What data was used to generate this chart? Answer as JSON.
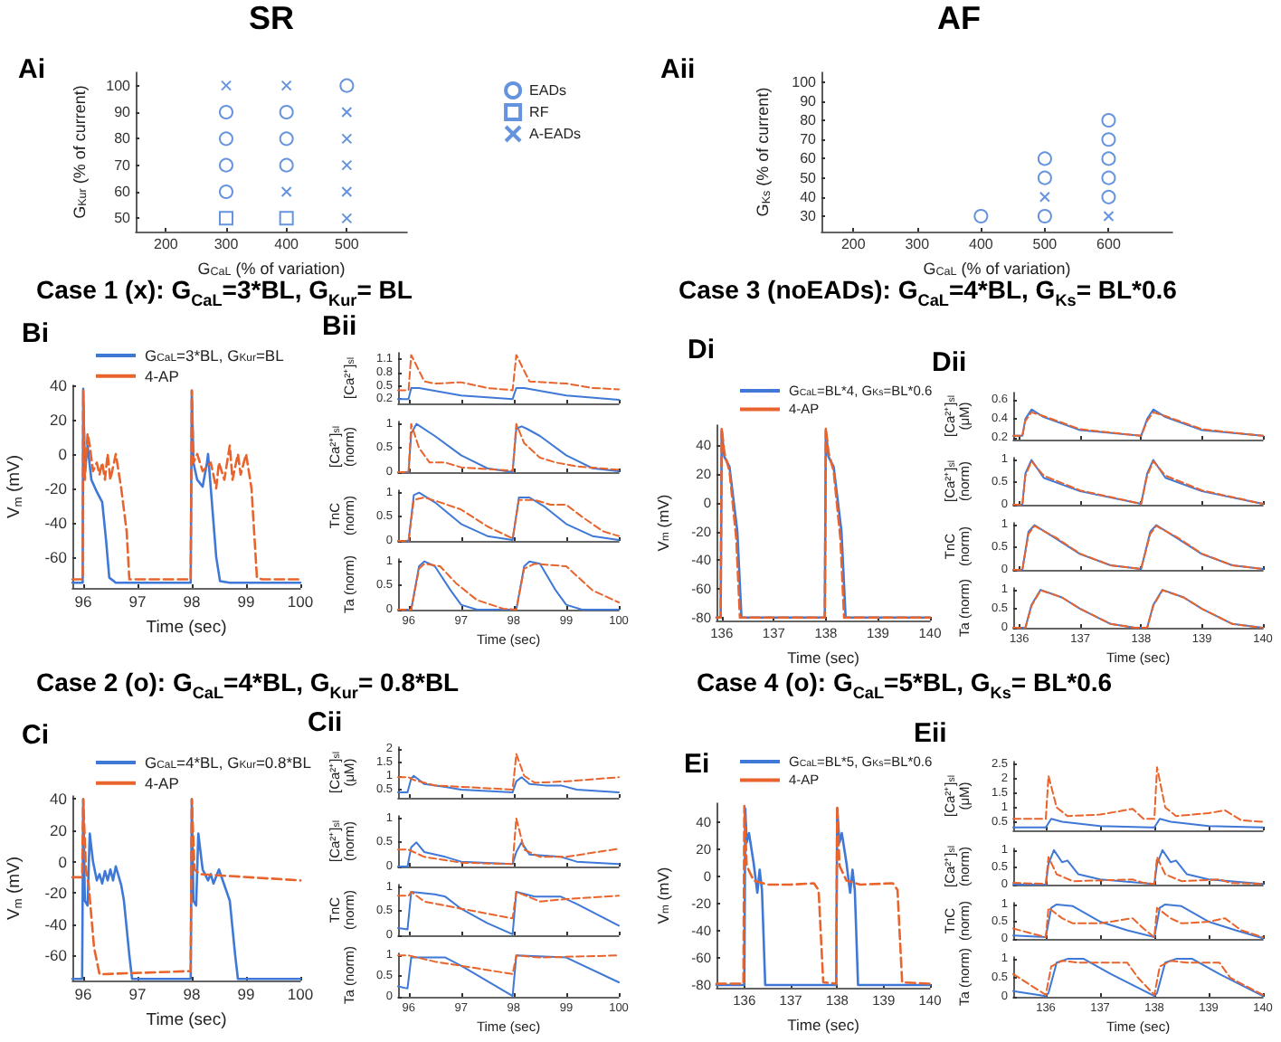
{
  "chart_data": [
    {
      "type": "scatter",
      "title": "Ai",
      "subtitle": "SR",
      "xlabel": "G$_{CaL}$ (% of variation)",
      "ylabel": "G$_{Kur}$ (% of current)",
      "xlim": [
        150,
        600
      ],
      "xticks": [
        200,
        300,
        400,
        500
      ],
      "ylim": [
        45,
        105
      ],
      "yticks": [
        50,
        60,
        70,
        80,
        90,
        100
      ],
      "legend": "top right",
      "series": [
        {
          "name": "EADs",
          "color": "#3f78d6",
          "marker": "circle",
          "x": [
            300,
            300,
            300,
            300,
            400,
            400,
            400,
            500
          ],
          "values": [
            90,
            80,
            70,
            60,
            90,
            80,
            70,
            100
          ]
        },
        {
          "name": "RF",
          "color": "#3f78d6",
          "marker": "square",
          "x": [
            300,
            400
          ],
          "values": [
            50,
            50
          ]
        },
        {
          "name": "A-EADs",
          "color": "#3f78d6",
          "marker": "cross",
          "x": [
            300,
            400,
            400,
            500,
            500,
            500,
            500,
            500
          ],
          "values": [
            100,
            100,
            60,
            90,
            80,
            70,
            60,
            50
          ]
        }
      ]
    },
    {
      "type": "scatter",
      "title": "Aii",
      "subtitle": "AF",
      "xlabel": "G$_{CaL}$ (% of variation)",
      "ylabel": "G$_{Ks}$ (% of current)",
      "xlim": [
        150,
        700
      ],
      "xticks": [
        200,
        300,
        400,
        500,
        600
      ],
      "ylim": [
        22,
        105
      ],
      "yticks": [
        30,
        40,
        50,
        60,
        70,
        80,
        90,
        100
      ],
      "series": [
        {
          "color": "#3f78d6",
          "marker": "circle",
          "x": [
            400,
            500,
            500,
            500,
            600,
            600,
            600,
            600,
            600
          ],
          "values": [
            30,
            30,
            50,
            60,
            40,
            50,
            60,
            70,
            80
          ]
        },
        {
          "color": "#3f78d6",
          "marker": "cross",
          "x": [
            500,
            600
          ],
          "values": [
            40,
            30
          ]
        }
      ]
    },
    {
      "type": "line",
      "title": "Bi",
      "subtitle": "Case 1 (x): G$_{CaL}$=3*BL, G$_{Kur}$= BL",
      "xlabel": "Time (sec)",
      "ylabel": "V$_{m}$ (mV)",
      "xlim": [
        95.8,
        100
      ],
      "xticks": [
        96,
        97,
        98,
        99,
        100
      ],
      "ylim": [
        -78,
        40
      ],
      "yticks": [
        -60,
        -40,
        -20,
        0,
        20,
        40
      ],
      "legend": "top",
      "series": [
        {
          "name": "G$_{CaL}$=3*BL, G$_{Kur}$=BL",
          "color": "#3f78d6",
          "line_style": "solid",
          "x": [
            95.8,
            95.99,
            96.0,
            96.03,
            96.08,
            96.15,
            96.25,
            96.35,
            96.42,
            96.48,
            96.6,
            97.98,
            98.0,
            98.03,
            98.1,
            98.2,
            98.28,
            98.3,
            98.35,
            98.45,
            98.52,
            98.7,
            100
          ],
          "values": [
            -75,
            -75,
            38,
            -10,
            5,
            -15,
            -22,
            -28,
            -50,
            -72,
            -75,
            -75,
            37,
            -5,
            -15,
            -19,
            -5,
            0,
            -20,
            -60,
            -74,
            -75,
            -75
          ]
        },
        {
          "name": "4-AP",
          "color": "#e8642c",
          "line_style": "dashed",
          "x": [
            95.8,
            95.99,
            96.0,
            96.03,
            96.08,
            96.12,
            96.18,
            96.25,
            96.3,
            96.35,
            96.4,
            96.45,
            96.5,
            96.6,
            96.7,
            96.8,
            96.85,
            97.98,
            98.0,
            98.03,
            98.1,
            98.2,
            98.35,
            98.45,
            98.5,
            98.6,
            98.7,
            98.75,
            98.85,
            98.9,
            99.0,
            99.1,
            99.2,
            99.3,
            100
          ],
          "values": [
            -73,
            -73,
            37,
            -15,
            12,
            5,
            -10,
            -5,
            -12,
            -5,
            -15,
            0,
            -15,
            0,
            -20,
            -45,
            -73,
            -73,
            37,
            -5,
            0,
            -10,
            -5,
            -20,
            -5,
            -15,
            5,
            -15,
            0,
            -12,
            0,
            -20,
            -72,
            -73,
            -73
          ]
        }
      ]
    },
    {
      "type": "line",
      "title": "Bii",
      "ylabel": "[Ca²⁺]$_{sl}$",
      "xlim": [
        95.8,
        100
      ],
      "xticks": [
        96,
        97,
        98,
        99,
        100
      ],
      "ylim": [
        0.1,
        1.25
      ],
      "yticks": [
        0.2,
        0.5,
        0.8,
        1.1
      ],
      "tick_labels": "y",
      "series": [
        {
          "color": "#3f78d6",
          "line_style": "solid",
          "x": [
            95.8,
            96.0,
            96.05,
            96.2,
            97,
            97.98,
            98.05,
            98.2,
            99,
            100
          ],
          "values": [
            0.2,
            0.2,
            0.45,
            0.45,
            0.28,
            0.2,
            0.45,
            0.45,
            0.28,
            0.18
          ]
        },
        {
          "color": "#e8642c",
          "line_style": "dashed",
          "x": [
            95.8,
            96.0,
            96.05,
            96.3,
            96.5,
            97,
            97.5,
            97.98,
            98.05,
            98.3,
            99,
            99.5,
            100
          ],
          "values": [
            0.4,
            0.4,
            1.2,
            0.6,
            0.55,
            0.58,
            0.45,
            0.4,
            1.2,
            0.6,
            0.55,
            0.45,
            0.42
          ]
        }
      ]
    },
    {
      "type": "line",
      "ylabel": "[Ca²⁺]$_{sl}$ (norm)",
      "xlim": [
        95.8,
        100
      ],
      "xticks": [
        96,
        97,
        98,
        99,
        100
      ],
      "ylim": [
        0,
        1.05
      ],
      "yticks": [
        0,
        0.5,
        1
      ],
      "tick_labels": "y",
      "series": [
        {
          "color": "#3f78d6",
          "line_style": "solid",
          "x": [
            95.8,
            96.0,
            96.05,
            96.15,
            96.5,
            97,
            97.5,
            97.98,
            98.05,
            98.15,
            98.25,
            98.5,
            99,
            99.5,
            100
          ],
          "values": [
            0,
            0,
            0.8,
            1,
            0.75,
            0.35,
            0.08,
            0,
            0.9,
            0.95,
            0.9,
            0.75,
            0.35,
            0.08,
            0.02
          ]
        },
        {
          "color": "#e8642c",
          "line_style": "dashed",
          "x": [
            95.8,
            96.0,
            96.05,
            96.2,
            96.4,
            96.7,
            97,
            97.98,
            98.05,
            98.2,
            98.5,
            98.8,
            99.2,
            100
          ],
          "values": [
            0,
            0,
            1,
            0.5,
            0.2,
            0.2,
            0.1,
            0.03,
            1,
            0.6,
            0.3,
            0.2,
            0.12,
            0.05
          ]
        }
      ]
    },
    {
      "type": "line",
      "ylabel": "TnC (norm)",
      "xlim": [
        95.8,
        100
      ],
      "xticks": [
        96,
        97,
        98,
        99,
        100
      ],
      "ylim": [
        0,
        1.05
      ],
      "yticks": [
        0,
        0.5,
        1
      ],
      "tick_labels": "y",
      "series": [
        {
          "color": "#3f78d6",
          "line_style": "solid",
          "x": [
            95.8,
            96.0,
            96.1,
            96.2,
            96.5,
            97,
            97.5,
            97.98,
            98.1,
            98.3,
            98.6,
            99,
            99.5,
            100
          ],
          "values": [
            0,
            0,
            0.95,
            1,
            0.8,
            0.35,
            0.1,
            0.02,
            0.9,
            0.9,
            0.7,
            0.35,
            0.1,
            0.02
          ]
        },
        {
          "color": "#e8642c",
          "line_style": "dashed",
          "x": [
            95.8,
            96.0,
            96.1,
            96.3,
            96.6,
            97,
            97.5,
            97.98,
            98.1,
            98.4,
            98.7,
            99,
            99.3,
            99.7,
            100
          ],
          "values": [
            0,
            0,
            0.85,
            0.9,
            0.8,
            0.65,
            0.3,
            0.05,
            0.85,
            0.85,
            0.75,
            0.75,
            0.5,
            0.2,
            0.1
          ]
        }
      ]
    },
    {
      "type": "line",
      "xlabel": "Time (sec)",
      "ylabel": "Ta (norm)",
      "xlim": [
        95.8,
        100
      ],
      "xticks": [
        96,
        97,
        98,
        99,
        100
      ],
      "ylim": [
        0,
        1.05
      ],
      "yticks": [
        0,
        0.5,
        1
      ],
      "series": [
        {
          "color": "#3f78d6",
          "line_style": "solid",
          "x": [
            95.8,
            96.05,
            96.2,
            96.3,
            96.5,
            96.8,
            97,
            97.3,
            98.05,
            98.2,
            98.3,
            98.5,
            98.8,
            99,
            99.3,
            100
          ],
          "values": [
            0,
            0,
            0.9,
            1,
            0.9,
            0.4,
            0.1,
            0,
            0,
            0.9,
            1,
            0.95,
            0.4,
            0.1,
            0,
            0
          ]
        },
        {
          "color": "#e8642c",
          "line_style": "dashed",
          "x": [
            95.8,
            96.05,
            96.2,
            96.3,
            96.6,
            96.9,
            97.3,
            97.8,
            98.05,
            98.2,
            98.4,
            99,
            99.5,
            100
          ],
          "values": [
            0,
            0,
            0.85,
            0.95,
            0.9,
            0.55,
            0.2,
            0.02,
            0,
            0.85,
            0.95,
            0.9,
            0.4,
            0.15
          ]
        }
      ]
    },
    {
      "type": "line",
      "title": "Di",
      "subtitle": "Case 3 (noEADs): G$_{CaL}$=4*BL, G$_{Ks}$= BL*0.6",
      "xlabel": "Time (sec)",
      "ylabel": "V$_{m}$ (mV)",
      "xlim": [
        135.9,
        140
      ],
      "xticks": [
        136,
        137,
        138,
        139,
        140
      ],
      "ylim": [
        -82,
        54
      ],
      "yticks": [
        -80,
        -60,
        -40,
        -20,
        0,
        20,
        40
      ],
      "legend": "top",
      "series": [
        {
          "name": "G$_{CaL}$=BL*4, G$_{Ks}$=BL*0.6",
          "color": "#3f78d6",
          "line_style": "solid",
          "x": [
            135.9,
            135.98,
            136.0,
            136.05,
            136.15,
            136.3,
            136.38,
            137.98,
            138.0,
            138.05,
            138.15,
            138.3,
            138.38,
            140
          ],
          "values": [
            -80,
            -80,
            50,
            32,
            25,
            -20,
            -80,
            -80,
            50,
            32,
            25,
            -20,
            -80,
            -80
          ]
        },
        {
          "name": "4-AP",
          "color": "#e8642c",
          "line_style": "dashed",
          "x": [
            135.9,
            135.98,
            136.0,
            136.05,
            136.15,
            136.28,
            136.35,
            137.98,
            138.0,
            138.05,
            138.15,
            138.28,
            138.35,
            140
          ],
          "values": [
            -80,
            -80,
            52,
            35,
            22,
            -25,
            -80,
            -80,
            52,
            35,
            22,
            -25,
            -80,
            -80
          ]
        }
      ]
    },
    {
      "type": "line",
      "title": "Dii",
      "ylabel": "[Ca²⁺]$_{sl}$ (μM)",
      "xlim": [
        135.9,
        140
      ],
      "xticks": [
        136,
        137,
        138,
        139,
        140
      ],
      "ylim": [
        0.18,
        0.68
      ],
      "yticks": [
        0.2,
        0.4,
        0.6
      ],
      "tick_labels": "y",
      "series": [
        {
          "color": "#3f78d6",
          "line_style": "solid",
          "x": [
            135.9,
            136.05,
            136.1,
            136.2,
            136.4,
            137,
            138,
            138.1,
            138.2,
            138.4,
            139,
            140
          ],
          "values": [
            0.22,
            0.22,
            0.4,
            0.5,
            0.42,
            0.28,
            0.22,
            0.4,
            0.5,
            0.42,
            0.28,
            0.22
          ]
        },
        {
          "color": "#e8642c",
          "line_style": "dashed",
          "x": [
            135.9,
            136.05,
            136.1,
            136.2,
            136.4,
            137,
            138,
            138.1,
            138.2,
            138.4,
            139,
            140
          ],
          "values": [
            0.22,
            0.22,
            0.38,
            0.47,
            0.43,
            0.29,
            0.22,
            0.38,
            0.47,
            0.43,
            0.29,
            0.22
          ]
        }
      ]
    },
    {
      "type": "line",
      "ylabel": "[Ca²⁺]$_{sl}$ (norm)",
      "xlim": [
        135.9,
        140
      ],
      "xticks": [
        136,
        137,
        138,
        139,
        140
      ],
      "ylim": [
        0,
        1.05
      ],
      "yticks": [
        0,
        0.5,
        1
      ],
      "tick_labels": "y",
      "series": [
        {
          "color": "#3f78d6",
          "line_style": "solid",
          "x": [
            135.9,
            136.05,
            136.1,
            136.2,
            136.4,
            137,
            138,
            138.1,
            138.2,
            138.4,
            139,
            140
          ],
          "values": [
            0,
            0,
            0.7,
            1,
            0.6,
            0.3,
            0.02,
            0.7,
            1,
            0.6,
            0.3,
            0.02
          ]
        },
        {
          "color": "#e8642c",
          "line_style": "dashed",
          "x": [
            135.9,
            136.05,
            136.1,
            136.2,
            136.4,
            137,
            138,
            138.1,
            138.2,
            138.4,
            139,
            140
          ],
          "values": [
            0,
            0,
            0.65,
            0.97,
            0.65,
            0.32,
            0.02,
            0.65,
            0.97,
            0.65,
            0.32,
            0.02
          ]
        }
      ]
    },
    {
      "type": "line",
      "ylabel": "TnC (norm)",
      "xlim": [
        135.9,
        140
      ],
      "xticks": [
        136,
        137,
        138,
        139,
        140
      ],
      "ylim": [
        0,
        1.05
      ],
      "yticks": [
        0,
        0.5,
        1
      ],
      "tick_labels": "y",
      "series": [
        {
          "color": "#3f78d6",
          "line_style": "solid",
          "x": [
            135.9,
            136.05,
            136.15,
            136.25,
            136.6,
            137,
            137.5,
            138,
            138.15,
            138.25,
            138.6,
            139,
            139.5,
            140
          ],
          "values": [
            0,
            0,
            0.85,
            1,
            0.7,
            0.35,
            0.1,
            0.02,
            0.85,
            1,
            0.7,
            0.35,
            0.1,
            0.02
          ]
        },
        {
          "color": "#e8642c",
          "line_style": "dashed",
          "x": [
            135.9,
            136.05,
            136.15,
            136.25,
            136.6,
            137,
            137.5,
            138,
            138.15,
            138.25,
            138.6,
            139,
            139.5,
            140
          ],
          "values": [
            0,
            0,
            0.8,
            0.98,
            0.72,
            0.36,
            0.1,
            0.02,
            0.8,
            0.98,
            0.72,
            0.36,
            0.1,
            0.02
          ]
        }
      ]
    },
    {
      "type": "line",
      "xlabel": "Time (sec)",
      "ylabel": "Ta (norm)",
      "xlim": [
        135.9,
        140
      ],
      "xticks": [
        136,
        137,
        138,
        139,
        140
      ],
      "ylim": [
        0,
        1.05
      ],
      "yticks": [
        0,
        0.5,
        1
      ],
      "series": [
        {
          "color": "#3f78d6",
          "line_style": "solid",
          "x": [
            135.9,
            136.1,
            136.2,
            136.35,
            136.7,
            137,
            137.5,
            137.9,
            138.1,
            138.2,
            138.35,
            138.7,
            139,
            139.5,
            140
          ],
          "values": [
            0,
            0,
            0.6,
            1,
            0.8,
            0.5,
            0.1,
            0,
            0,
            0.6,
            1,
            0.8,
            0.5,
            0.1,
            0
          ]
        },
        {
          "color": "#e8642c",
          "line_style": "dashed",
          "x": [
            135.9,
            136.1,
            136.2,
            136.35,
            136.7,
            137,
            137.5,
            137.9,
            138.1,
            138.2,
            138.35,
            138.7,
            139,
            139.5,
            140
          ],
          "values": [
            0,
            0,
            0.58,
            0.99,
            0.8,
            0.5,
            0.1,
            0,
            0,
            0.58,
            0.99,
            0.8,
            0.5,
            0.1,
            0
          ]
        }
      ]
    },
    {
      "type": "line",
      "title": "Ci",
      "subtitle": "Case 2 (o): G$_{CaL}$=4*BL, G$_{Kur}$= 0.8*BL",
      "xlabel": "Time (sec)",
      "ylabel": "V$_{m}$ (mV)",
      "xlim": [
        95.8,
        100
      ],
      "xticks": [
        96,
        97,
        98,
        99,
        100
      ],
      "ylim": [
        -76,
        42
      ],
      "yticks": [
        -60,
        -40,
        -20,
        0,
        20,
        40
      ],
      "legend": "top",
      "series": [
        {
          "name": "G$_{CaL}$=4*BL, G$_{Kur}$=0.8*BL",
          "color": "#3f78d6",
          "line_style": "solid",
          "x": [
            95.8,
            95.98,
            96.0,
            96.03,
            96.08,
            96.12,
            96.18,
            96.25,
            96.3,
            96.35,
            96.4,
            96.45,
            96.5,
            96.55,
            96.6,
            96.7,
            96.75,
            96.85,
            96.9,
            97.98,
            98.0,
            98.03,
            98.08,
            98.12,
            98.2,
            98.3,
            98.35,
            98.4,
            98.5,
            98.6,
            98.7,
            98.8,
            98.85,
            100
          ],
          "values": [
            -75,
            -75,
            40,
            -25,
            -28,
            18,
            0,
            -12,
            -8,
            -14,
            -6,
            -12,
            -5,
            -12,
            -3,
            -15,
            -25,
            -60,
            -75,
            -75,
            40,
            -25,
            -28,
            18,
            -5,
            -12,
            -8,
            -14,
            -5,
            -15,
            -25,
            -60,
            -75,
            -75
          ]
        },
        {
          "name": "4-AP",
          "color": "#e8642c",
          "line_style": "dashed",
          "x": [
            95.8,
            95.98,
            96.0,
            96.05,
            96.1,
            96.2,
            96.3,
            97.98,
            98.0,
            98.05,
            98.15,
            100
          ],
          "values": [
            -10,
            -10,
            40,
            -5,
            -15,
            -55,
            -72,
            -70,
            40,
            -5,
            -8,
            -12
          ]
        }
      ]
    },
    {
      "type": "line",
      "title": "Cii",
      "ylabel": "[Ca²⁺]$_{sl}$ (μM)",
      "xlim": [
        95.8,
        100
      ],
      "xticks": [
        96,
        97,
        98,
        99,
        100
      ],
      "ylim": [
        0.2,
        2.05
      ],
      "yticks": [
        0.5,
        1,
        1.5,
        2
      ],
      "tick_labels": "y",
      "series": [
        {
          "color": "#3f78d6",
          "line_style": "solid",
          "x": [
            95.8,
            95.98,
            96.05,
            96.1,
            96.3,
            96.7,
            97,
            97.98,
            98.05,
            98.15,
            98.3,
            98.6,
            98.9,
            99.2,
            100
          ],
          "values": [
            0.4,
            0.4,
            0.9,
            1.0,
            0.7,
            0.6,
            0.5,
            0.4,
            0.8,
            0.95,
            0.7,
            0.65,
            0.65,
            0.5,
            0.4
          ]
        },
        {
          "color": "#e8642c",
          "line_style": "dashed",
          "x": [
            95.8,
            96.0,
            96.1,
            96.5,
            97.98,
            98.05,
            98.2,
            98.4,
            99,
            100
          ],
          "values": [
            0.95,
            0.95,
            0.85,
            0.65,
            0.5,
            1.8,
            1.0,
            0.75,
            0.8,
            0.95
          ]
        }
      ]
    },
    {
      "type": "line",
      "ylabel": "[Ca²⁺]$_{sl}$ (norm)",
      "xlim": [
        95.8,
        100
      ],
      "xticks": [
        96,
        97,
        98,
        99,
        100
      ],
      "ylim": [
        0,
        1.05
      ],
      "yticks": [
        0,
        0.5,
        1
      ],
      "tick_labels": "y",
      "series": [
        {
          "color": "#3f78d6",
          "line_style": "solid",
          "x": [
            95.8,
            95.98,
            96.05,
            96.15,
            96.3,
            96.7,
            97,
            97.98,
            98.05,
            98.15,
            98.3,
            98.9,
            99.2,
            100
          ],
          "values": [
            0,
            0,
            0.4,
            0.5,
            0.3,
            0.2,
            0.1,
            0.05,
            0.3,
            0.5,
            0.25,
            0.2,
            0.1,
            0.05
          ]
        },
        {
          "color": "#e8642c",
          "line_style": "dashed",
          "x": [
            95.8,
            96.0,
            96.1,
            96.3,
            97,
            97.98,
            98.05,
            98.2,
            98.5,
            99,
            100
          ],
          "values": [
            0.35,
            0.35,
            0.3,
            0.2,
            0.08,
            0.05,
            1.0,
            0.35,
            0.2,
            0.2,
            0.37
          ]
        }
      ]
    },
    {
      "type": "line",
      "ylabel": "TnC (norm)",
      "xlim": [
        95.8,
        100
      ],
      "xticks": [
        96,
        97,
        98,
        99,
        100
      ],
      "ylim": [
        0,
        1.05
      ],
      "yticks": [
        0,
        0.5,
        1
      ],
      "tick_labels": "y",
      "series": [
        {
          "color": "#3f78d6",
          "line_style": "solid",
          "x": [
            95.8,
            95.98,
            96.05,
            96.5,
            96.7,
            97,
            97.5,
            97.98,
            98.05,
            98.4,
            98.9,
            99.2,
            100
          ],
          "values": [
            0.15,
            0.12,
            0.9,
            0.85,
            0.8,
            0.55,
            0.25,
            0.02,
            0.9,
            0.8,
            0.8,
            0.65,
            0.2
          ]
        },
        {
          "color": "#e8642c",
          "line_style": "dashed",
          "x": [
            95.8,
            96.0,
            96.05,
            96.3,
            97,
            97.98,
            98.05,
            98.5,
            99,
            100
          ],
          "values": [
            0.82,
            0.82,
            0.9,
            0.7,
            0.55,
            0.35,
            0.9,
            0.7,
            0.75,
            0.82
          ]
        }
      ]
    },
    {
      "type": "line",
      "xlabel": "Time (sec)",
      "ylabel": "Ta (norm)",
      "xlim": [
        95.8,
        100
      ],
      "xticks": [
        96,
        97,
        98,
        99,
        100
      ],
      "ylim": [
        0,
        1.05
      ],
      "yticks": [
        0,
        0.5,
        1
      ],
      "series": [
        {
          "color": "#3f78d6",
          "line_style": "solid",
          "x": [
            95.8,
            95.98,
            96.05,
            96.7,
            97,
            97.98,
            98.05,
            99,
            100
          ],
          "values": [
            0.25,
            0.2,
            0.95,
            0.95,
            0.75,
            0.02,
            1.0,
            0.95,
            0.35
          ]
        },
        {
          "color": "#e8642c",
          "line_style": "dashed",
          "x": [
            95.8,
            96.0,
            96.5,
            97.98,
            98.05,
            98.5,
            100
          ],
          "values": [
            1.0,
            1.0,
            0.85,
            0.55,
            1.0,
            0.95,
            1.0
          ]
        }
      ]
    },
    {
      "type": "line",
      "title": "Ei",
      "subtitle": "Case 4 (o): G$_{CaL}$=5*BL, G$_{Ks}$= BL*0.6",
      "xlabel": "Time (sec)",
      "ylabel": "V$_{m}$ (mV)",
      "xlim": [
        135.4,
        140
      ],
      "xticks": [
        136,
        137,
        138,
        139,
        140
      ],
      "ylim": [
        -82,
        54
      ],
      "yticks": [
        -80,
        -60,
        -40,
        -20,
        0,
        20,
        40
      ],
      "legend": "top",
      "series": [
        {
          "name": "G$_{CaL}$=BL*5, G$_{Ks}$=BL*0.6",
          "color": "#3f78d6",
          "line_style": "solid",
          "x": [
            135.4,
            136.0,
            136.02,
            136.05,
            136.1,
            136.2,
            136.28,
            136.33,
            136.38,
            136.45,
            137.98,
            138.0,
            138.05,
            138.1,
            138.2,
            138.28,
            138.33,
            138.38,
            138.45,
            140
          ],
          "values": [
            -80,
            -80,
            50,
            25,
            32,
            10,
            -12,
            5,
            -10,
            -80,
            -80,
            50,
            25,
            32,
            10,
            -12,
            5,
            -10,
            -80,
            -80
          ]
        },
        {
          "name": "4-AP",
          "color": "#e8642c",
          "line_style": "dashed",
          "x": [
            135.4,
            135.98,
            136.0,
            136.05,
            136.2,
            136.5,
            137.0,
            137.5,
            137.6,
            137.7,
            137.98,
            138.0,
            138.05,
            138.2,
            138.5,
            139.2,
            139.3,
            139.4,
            140
          ],
          "values": [
            -79,
            -79,
            52,
            8,
            -3,
            -6,
            -6,
            -5,
            -10,
            -78,
            -79,
            52,
            8,
            -3,
            -6,
            -5,
            -10,
            -78,
            -79
          ]
        }
      ]
    },
    {
      "type": "line",
      "title": "Eii",
      "ylabel": "[Ca²⁺]$_{sl}$ (μM)",
      "xlim": [
        135.4,
        140
      ],
      "xticks": [
        136,
        137,
        138,
        139,
        140
      ],
      "ylim": [
        0.2,
        2.6
      ],
      "yticks": [
        0.5,
        1,
        1.5,
        2,
        2.5
      ],
      "tick_labels": "y",
      "series": [
        {
          "color": "#3f78d6",
          "line_style": "solid",
          "x": [
            135.4,
            136,
            136.1,
            136.3,
            137,
            138,
            138.1,
            138.3,
            139,
            140
          ],
          "values": [
            0.3,
            0.3,
            0.6,
            0.5,
            0.35,
            0.3,
            0.6,
            0.5,
            0.35,
            0.3
          ]
        },
        {
          "color": "#e8642c",
          "line_style": "dashed",
          "x": [
            135.4,
            136,
            136.05,
            136.2,
            136.4,
            137,
            137.6,
            137.8,
            138,
            138.05,
            138.2,
            138.4,
            139,
            139.3,
            139.6,
            140
          ],
          "values": [
            0.6,
            0.6,
            2.1,
            1.0,
            0.7,
            0.75,
            0.95,
            0.6,
            0.6,
            2.4,
            1.0,
            0.7,
            0.8,
            0.9,
            0.55,
            0.5
          ]
        }
      ]
    },
    {
      "type": "line",
      "ylabel": "[Ca²⁺]$_{sl}$ (norm)",
      "xlim": [
        135.4,
        140
      ],
      "xticks": [
        136,
        137,
        138,
        139,
        140
      ],
      "ylim": [
        0,
        1.05
      ],
      "yticks": [
        0,
        0.5,
        1
      ],
      "tick_labels": "y",
      "series": [
        {
          "color": "#3f78d6",
          "line_style": "solid",
          "x": [
            135.4,
            136,
            136.05,
            136.15,
            136.3,
            136.4,
            136.6,
            137,
            138,
            138.05,
            138.15,
            138.3,
            138.4,
            138.6,
            139,
            140
          ],
          "values": [
            0,
            0,
            0.6,
            1,
            0.65,
            0.7,
            0.3,
            0.15,
            0.02,
            0.6,
            1,
            0.65,
            0.7,
            0.3,
            0.15,
            0.02
          ]
        },
        {
          "color": "#e8642c",
          "line_style": "dashed",
          "x": [
            135.4,
            136,
            136.05,
            136.2,
            136.5,
            137.6,
            137.8,
            138,
            138.05,
            138.2,
            138.5,
            139.2,
            139.4,
            140
          ],
          "values": [
            0.05,
            0.02,
            0.8,
            0.3,
            0.1,
            0.15,
            0.05,
            0.02,
            0.8,
            0.3,
            0.1,
            0.15,
            0.05,
            0.02
          ]
        }
      ]
    },
    {
      "type": "line",
      "ylabel": "TnC (norm)",
      "xlim": [
        135.4,
        140
      ],
      "xticks": [
        136,
        137,
        138,
        139,
        140
      ],
      "ylim": [
        0,
        1.05
      ],
      "yticks": [
        0,
        0.5,
        1
      ],
      "tick_labels": "y",
      "series": [
        {
          "color": "#3f78d6",
          "line_style": "solid",
          "x": [
            135.4,
            136,
            136.1,
            136.2,
            136.5,
            137,
            137.5,
            138,
            138.1,
            138.2,
            138.5,
            139,
            139.5,
            140
          ],
          "values": [
            0.1,
            0.05,
            0.9,
            1,
            0.95,
            0.5,
            0.25,
            0.05,
            0.9,
            1,
            0.95,
            0.5,
            0.25,
            0.02
          ]
        },
        {
          "color": "#e8642c",
          "line_style": "dashed",
          "x": [
            135.4,
            136,
            136.05,
            136.3,
            136.5,
            137,
            137.6,
            137.8,
            138,
            138.05,
            138.3,
            138.5,
            139,
            139.3,
            139.6,
            140
          ],
          "values": [
            0.3,
            0.05,
            0.9,
            0.6,
            0.45,
            0.45,
            0.6,
            0.3,
            0.05,
            0.9,
            0.6,
            0.45,
            0.5,
            0.6,
            0.25,
            0.05
          ]
        }
      ]
    },
    {
      "type": "line",
      "xlabel": "Time (sec)",
      "ylabel": "Ta (norm)",
      "xlim": [
        135.4,
        140
      ],
      "xticks": [
        136,
        137,
        138,
        139,
        140
      ],
      "ylim": [
        0,
        1.05
      ],
      "yticks": [
        0,
        0.5,
        1
      ],
      "series": [
        {
          "color": "#3f78d6",
          "line_style": "solid",
          "x": [
            135.4,
            136,
            136.05,
            136.2,
            136.4,
            136.7,
            137.2,
            138,
            138.05,
            138.2,
            138.4,
            138.7,
            139.2,
            140
          ],
          "values": [
            0.15,
            0.02,
            0.1,
            0.9,
            1,
            1,
            0.6,
            0.02,
            0.1,
            0.9,
            1,
            1,
            0.6,
            0.02
          ]
        },
        {
          "color": "#e8642c",
          "line_style": "dashed",
          "x": [
            135.4,
            136,
            136.1,
            136.3,
            136.6,
            137.5,
            137.7,
            138,
            138.1,
            138.3,
            138.6,
            139.2,
            139.4,
            140
          ],
          "values": [
            0.6,
            0.05,
            0.8,
            0.95,
            0.9,
            0.9,
            0.5,
            0.05,
            0.8,
            0.95,
            0.9,
            0.9,
            0.5,
            0.05
          ]
        }
      ]
    }
  ]
}
